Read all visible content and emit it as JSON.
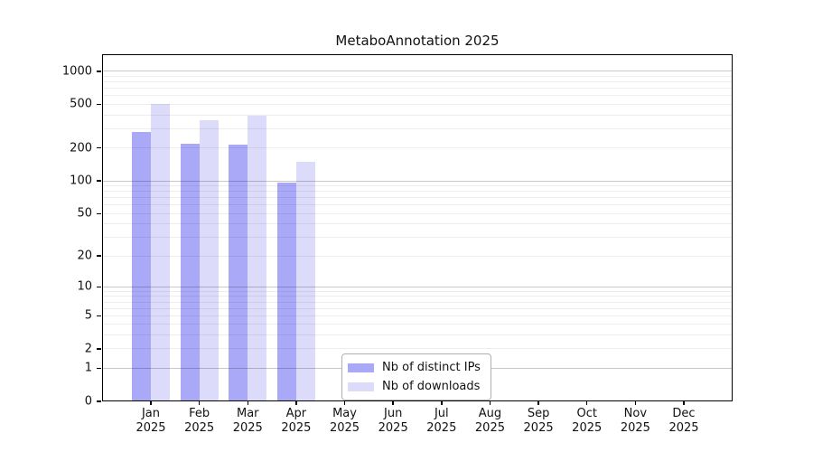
{
  "title": "MetaboAnnotation 2025",
  "chart_data": {
    "type": "bar",
    "title": "MetaboAnnotation 2025",
    "xlabel": "",
    "ylabel": "",
    "yscale": "log1p",
    "ylim": [
      0,
      1430
    ],
    "grid": "horizontal major+minor, legend inside bottom-center",
    "categories": [
      {
        "month": "Jan",
        "year": "2025"
      },
      {
        "month": "Feb",
        "year": "2025"
      },
      {
        "month": "Mar",
        "year": "2025"
      },
      {
        "month": "Apr",
        "year": "2025"
      },
      {
        "month": "May",
        "year": "2025"
      },
      {
        "month": "Jun",
        "year": "2025"
      },
      {
        "month": "Jul",
        "year": "2025"
      },
      {
        "month": "Aug",
        "year": "2025"
      },
      {
        "month": "Sep",
        "year": "2025"
      },
      {
        "month": "Oct",
        "year": "2025"
      },
      {
        "month": "Nov",
        "year": "2025"
      },
      {
        "month": "Dec",
        "year": "2025"
      }
    ],
    "series": [
      {
        "name": "Nb of distinct IPs",
        "color": "#a9a9f8",
        "values": [
          280,
          220,
          215,
          97,
          0,
          0,
          0,
          0,
          0,
          0,
          0,
          0
        ]
      },
      {
        "name": "Nb of downloads",
        "color": "#dcdbfa",
        "values": [
          500,
          360,
          395,
          150,
          0,
          0,
          0,
          0,
          0,
          0,
          0,
          0
        ]
      }
    ],
    "yticks": [
      0,
      1,
      2,
      5,
      10,
      20,
      50,
      100,
      200,
      500,
      1000
    ],
    "colors": {
      "axis": "#000000",
      "major_grid": "#cccccc",
      "minor_grid": "#ededed",
      "text": "#111111",
      "legend_border": "#b0b0b0"
    }
  },
  "legend": {
    "items": [
      {
        "label": "Nb of distinct IPs"
      },
      {
        "label": "Nb of downloads"
      }
    ]
  }
}
